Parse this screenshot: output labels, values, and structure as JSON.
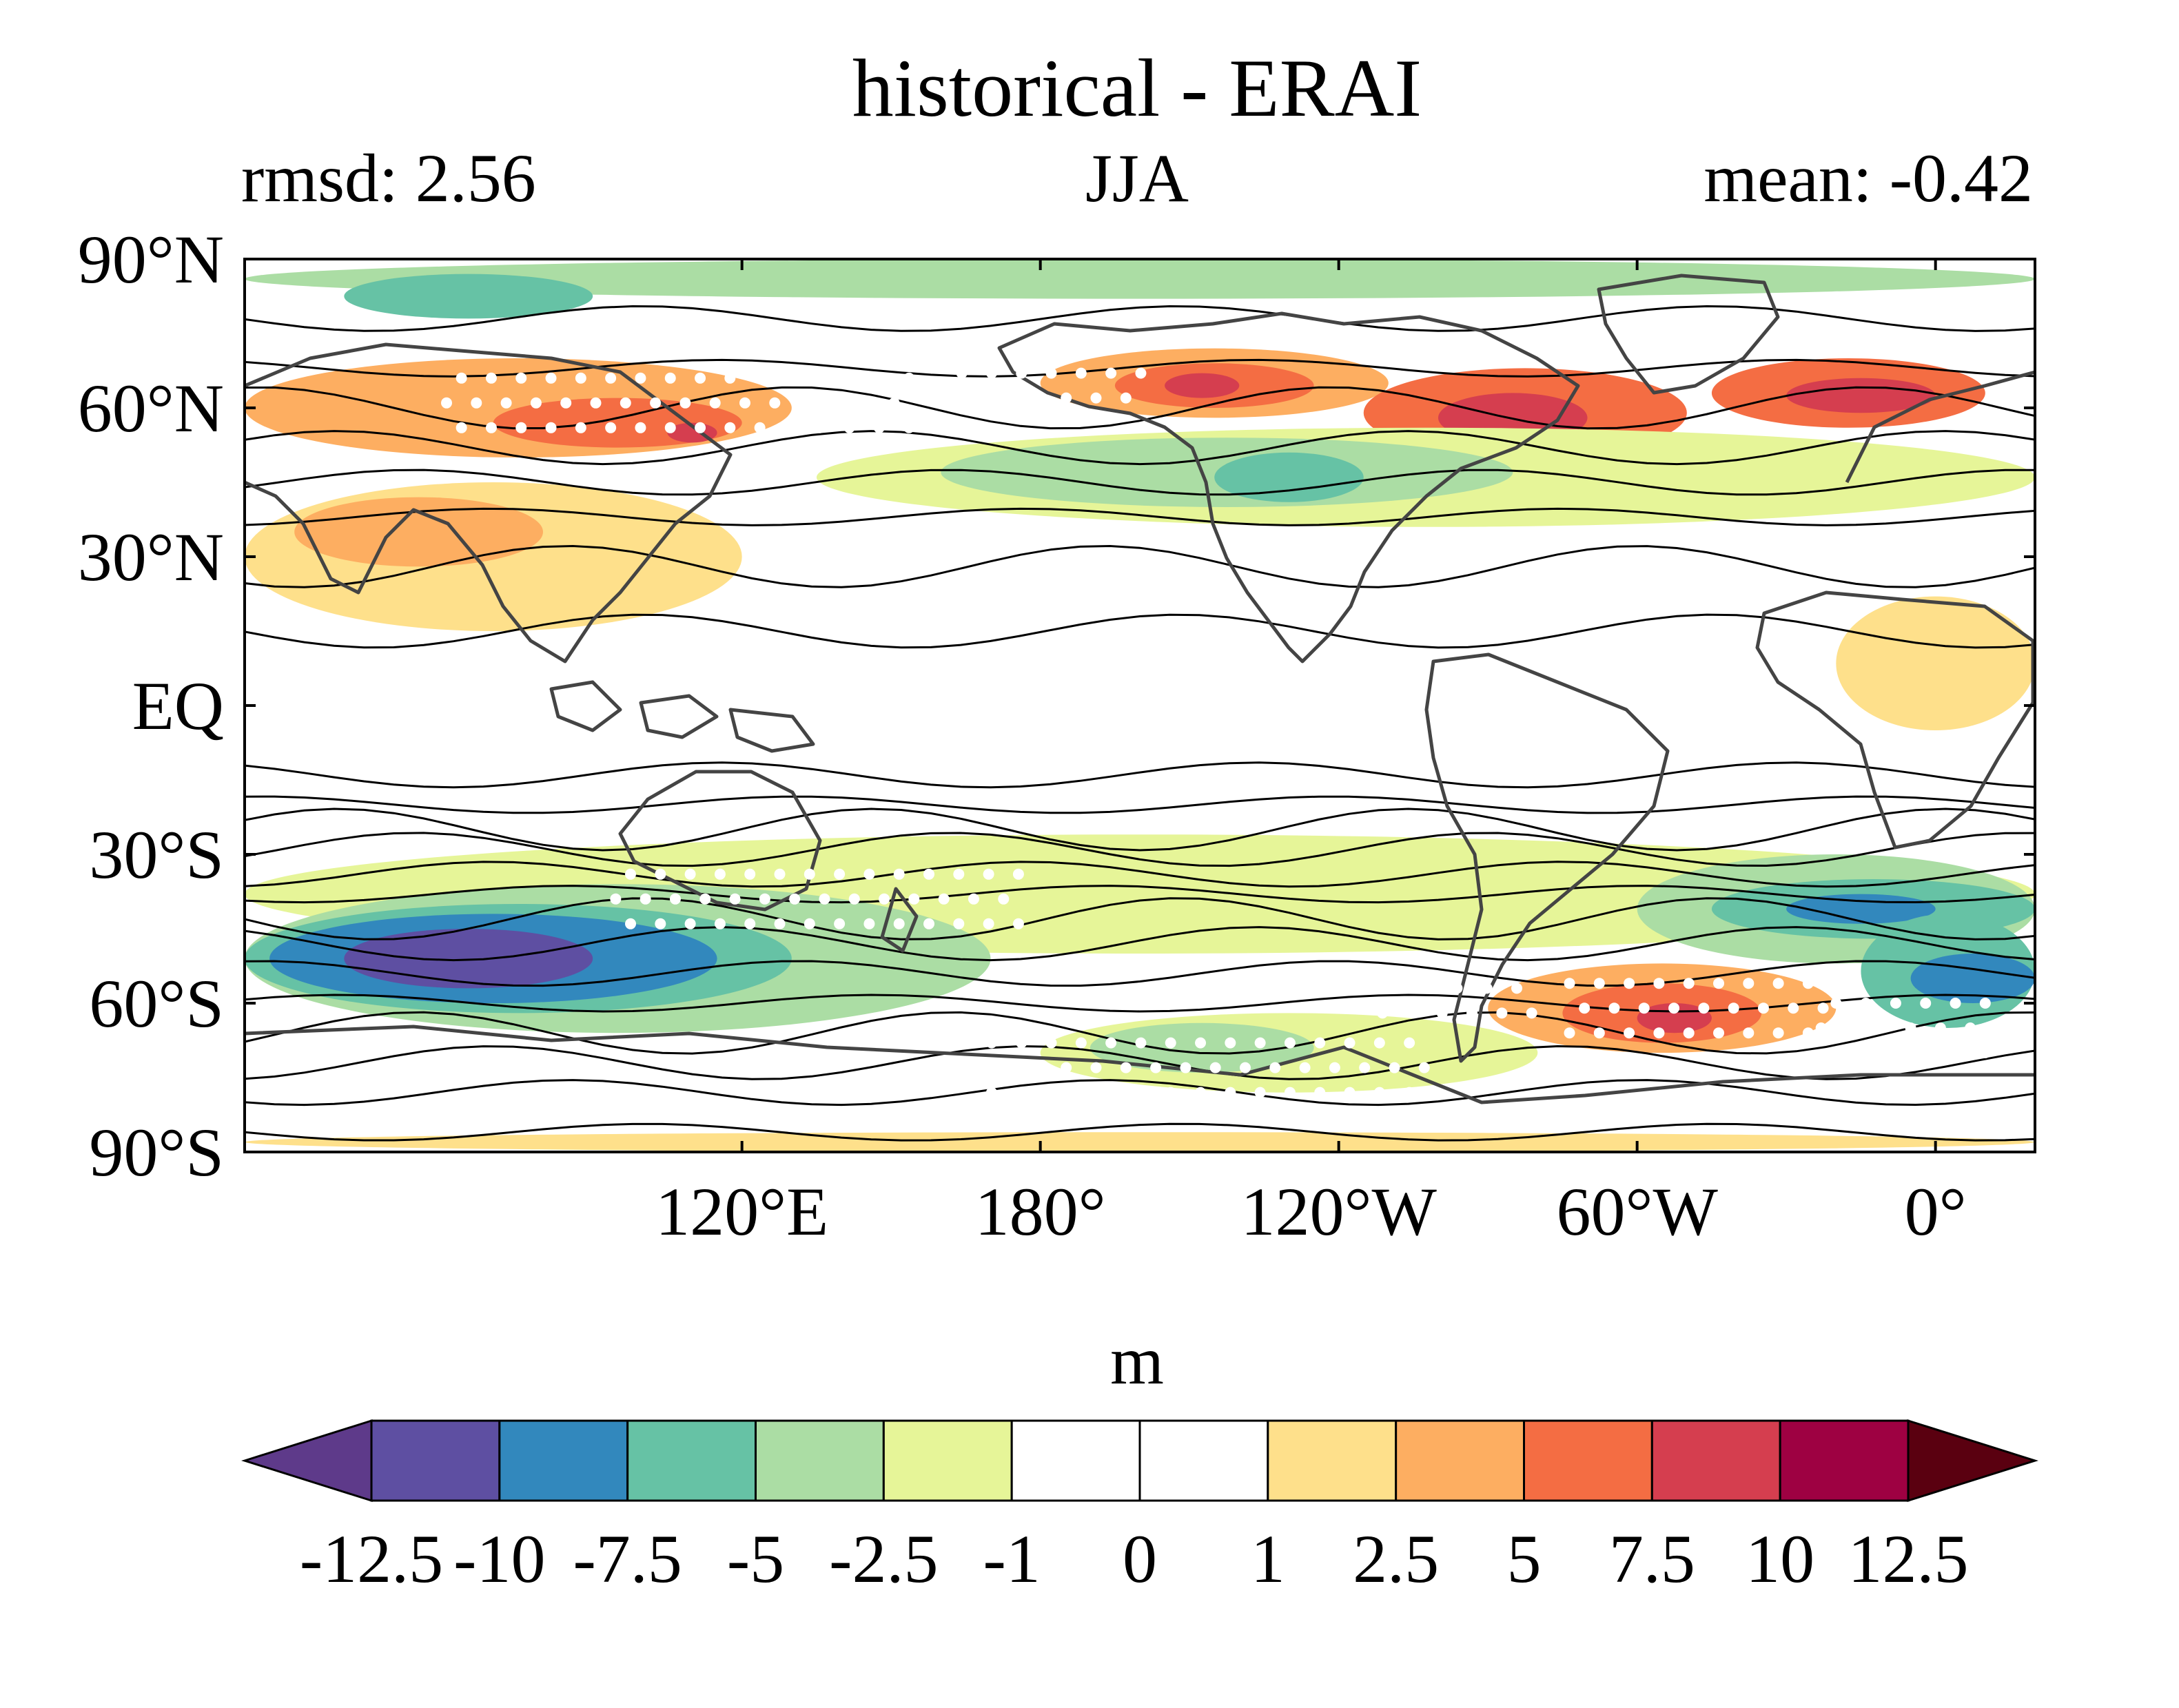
{
  "title": "historical - ERAI",
  "left_annotation": "rmsd: 2.56",
  "center_annotation": "JJA",
  "right_annotation": "mean: -0.42",
  "map": {
    "projection": "equirectangular",
    "lon_min": 20,
    "lon_max": 380,
    "lat_min": -90,
    "lat_max": 90,
    "lat_ticks": [
      {
        "value": 90,
        "label": "90°N"
      },
      {
        "value": 60,
        "label": "60°N"
      },
      {
        "value": 30,
        "label": "30°N"
      },
      {
        "value": 0,
        "label": "EQ"
      },
      {
        "value": -30,
        "label": "30°S"
      },
      {
        "value": -60,
        "label": "60°S"
      },
      {
        "value": -90,
        "label": "90°S"
      }
    ],
    "lon_ticks": [
      {
        "value": 120,
        "label": "120°E"
      },
      {
        "value": 180,
        "label": "180°"
      },
      {
        "value": 240,
        "label": "120°W"
      },
      {
        "value": 300,
        "label": "60°W"
      },
      {
        "value": 360,
        "label": "0°"
      }
    ],
    "anomaly_regions": [
      {
        "lon": [
          20,
          380
        ],
        "lat": [
          82,
          90
        ],
        "level": "-2.5"
      },
      {
        "lon": [
          40,
          90
        ],
        "lat": [
          78,
          87
        ],
        "level": "-5"
      },
      {
        "lon": [
          20,
          130
        ],
        "lat": [
          50,
          70
        ],
        "level": "2.5"
      },
      {
        "lon": [
          70,
          120
        ],
        "lat": [
          52,
          62
        ],
        "level": "5"
      },
      {
        "lon": [
          105,
          115
        ],
        "lat": [
          53,
          57
        ],
        "level": "7.5"
      },
      {
        "lon": [
          180,
          250
        ],
        "lat": [
          58,
          72
        ],
        "level": "2.5"
      },
      {
        "lon": [
          195,
          235
        ],
        "lat": [
          60,
          69
        ],
        "level": "5"
      },
      {
        "lon": [
          205,
          220
        ],
        "lat": [
          62,
          67
        ],
        "level": "7.5"
      },
      {
        "lon": [
          245,
          310
        ],
        "lat": [
          50,
          68
        ],
        "level": "5"
      },
      {
        "lon": [
          260,
          290
        ],
        "lat": [
          53,
          63
        ],
        "level": "7.5"
      },
      {
        "lon": [
          315,
          370
        ],
        "lat": [
          56,
          70
        ],
        "level": "5"
      },
      {
        "lon": [
          330,
          360
        ],
        "lat": [
          59,
          66
        ],
        "level": "7.5"
      },
      {
        "lon": [
          135,
          380
        ],
        "lat": [
          36,
          56
        ],
        "level": "-1"
      },
      {
        "lon": [
          160,
          275
        ],
        "lat": [
          40,
          54
        ],
        "level": "-2.5"
      },
      {
        "lon": [
          215,
          245
        ],
        "lat": [
          41,
          51
        ],
        "level": "-5"
      },
      {
        "lon": [
          20,
          120
        ],
        "lat": [
          15,
          45
        ],
        "level": "1"
      },
      {
        "lon": [
          30,
          80
        ],
        "lat": [
          28,
          42
        ],
        "level": "2.5"
      },
      {
        "lon": [
          340,
          380
        ],
        "lat": [
          -5,
          22
        ],
        "level": "1"
      },
      {
        "lon": [
          20,
          380
        ],
        "lat": [
          -50,
          -26
        ],
        "level": "-1"
      },
      {
        "lon": [
          20,
          170
        ],
        "lat": [
          -66,
          -36
        ],
        "level": "-2.5"
      },
      {
        "lon": [
          20,
          130
        ],
        "lat": [
          -62,
          -40
        ],
        "level": "-5"
      },
      {
        "lon": [
          25,
          115
        ],
        "lat": [
          -60,
          -42
        ],
        "level": "-7.5"
      },
      {
        "lon": [
          40,
          90
        ],
        "lat": [
          -57,
          -45
        ],
        "level": "-10"
      },
      {
        "lon": [
          300,
          380
        ],
        "lat": [
          -52,
          -30
        ],
        "level": "-2.5"
      },
      {
        "lon": [
          315,
          380
        ],
        "lat": [
          -47,
          -35
        ],
        "level": "-5"
      },
      {
        "lon": [
          330,
          360
        ],
        "lat": [
          -44,
          -38
        ],
        "level": "-7.5"
      },
      {
        "lon": [
          345,
          380
        ],
        "lat": [
          -65,
          -42
        ],
        "level": "-5"
      },
      {
        "lon": [
          355,
          380
        ],
        "lat": [
          -60,
          -50
        ],
        "level": "-7.5"
      },
      {
        "lon": [
          270,
          340
        ],
        "lat": [
          -70,
          -52
        ],
        "level": "2.5"
      },
      {
        "lon": [
          285,
          325
        ],
        "lat": [
          -68,
          -56
        ],
        "level": "5"
      },
      {
        "lon": [
          300,
          315
        ],
        "lat": [
          -66,
          -60
        ],
        "level": "7.5"
      },
      {
        "lon": [
          180,
          280
        ],
        "lat": [
          -78,
          -62
        ],
        "level": "-1"
      },
      {
        "lon": [
          190,
          235
        ],
        "lat": [
          -74,
          -64
        ],
        "level": "-2.5"
      },
      {
        "lon": [
          20,
          380
        ],
        "lat": [
          -90,
          -86
        ],
        "level": "1"
      }
    ],
    "contours_lat": [
      -86,
      -78,
      -72,
      -66,
      -60,
      -54,
      -48,
      -43,
      -38,
      -34,
      -29,
      -25,
      -20,
      -14,
      15,
      28,
      38,
      45,
      52,
      60,
      68,
      78
    ]
  },
  "colorbar": {
    "unit": "m",
    "labels": [
      "-12.5",
      "-10",
      "-7.5",
      "-5",
      "-2.5",
      "-1",
      "0",
      "1",
      "2.5",
      "5",
      "7.5",
      "10",
      "12.5"
    ],
    "low_extend_color": "#5e3a8a",
    "high_extend_color": "#5a0010",
    "bins": [
      {
        "from": "-12.5",
        "to": "-10",
        "color": "#5e4fa2"
      },
      {
        "from": "-10",
        "to": "-7.5",
        "color": "#3288bd"
      },
      {
        "from": "-7.5",
        "to": "-5",
        "color": "#66c2a5"
      },
      {
        "from": "-5",
        "to": "-2.5",
        "color": "#abdda4"
      },
      {
        "from": "-2.5",
        "to": "-1",
        "color": "#e6f598"
      },
      {
        "from": "-1",
        "to": "0",
        "color": "#ffffff"
      },
      {
        "from": "0",
        "to": "1",
        "color": "#ffffff"
      },
      {
        "from": "1",
        "to": "2.5",
        "color": "#fee08b"
      },
      {
        "from": "2.5",
        "to": "5",
        "color": "#fdae61"
      },
      {
        "from": "5",
        "to": "7.5",
        "color": "#f46d43"
      },
      {
        "from": "7.5",
        "to": "10",
        "color": "#d53e4f"
      },
      {
        "from": "10",
        "to": "12.5",
        "color": "#9e0142"
      }
    ]
  }
}
